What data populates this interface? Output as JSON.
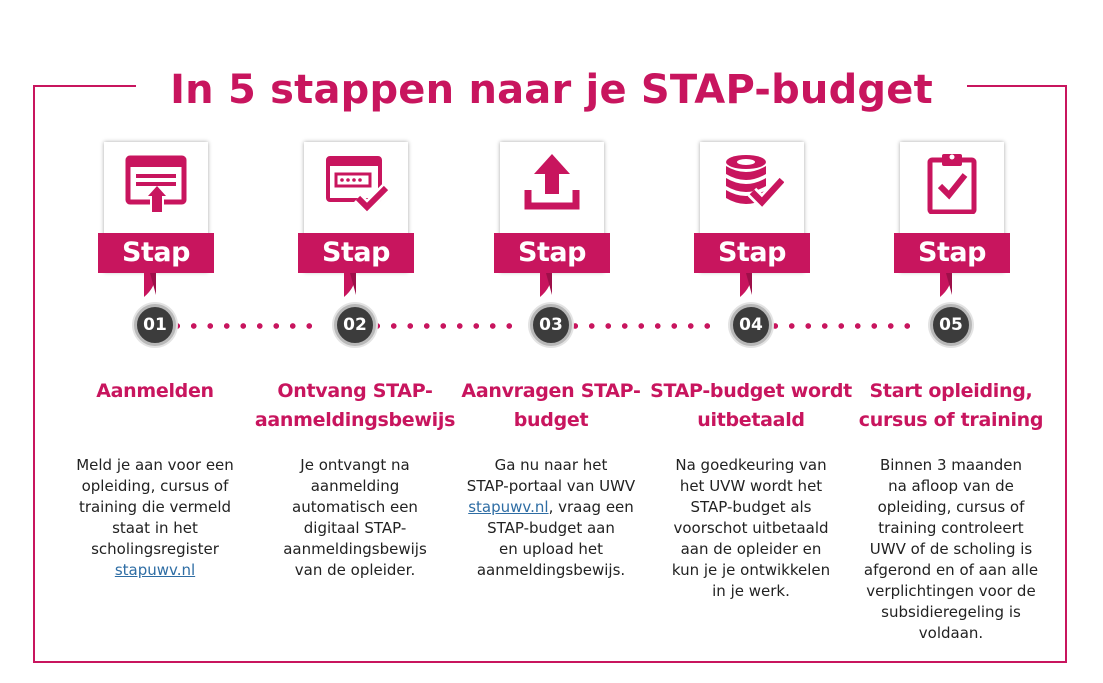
{
  "title": "In 5 stappen naar je STAP-budget",
  "colors": {
    "accent": "#c8155e",
    "number_circle": "#3c3c3c",
    "dots": "#c8155e",
    "link": "#2e6da4"
  },
  "steps": [
    {
      "number": "01",
      "banner": "Stap",
      "icon": "browser-upload-icon",
      "heading": [
        "Aanmelden"
      ],
      "body": [
        "Meld je aan voor een",
        "opleiding, cursus of",
        "training die vermeld",
        "staat in het",
        "scholingsregister"
      ],
      "link": "stapuwv.nl"
    },
    {
      "number": "02",
      "banner": "Stap",
      "icon": "password-check-icon",
      "heading": [
        "Ontvang STAP-",
        "aanmeldingsbewijs"
      ],
      "body": [
        "Je ontvangt na",
        "aanmelding",
        "automatisch een",
        "digitaal STAP-",
        "aanmeldingsbewijs",
        "van de opleider."
      ]
    },
    {
      "number": "03",
      "banner": "Stap",
      "icon": "upload-icon",
      "heading": [
        "Aanvragen",
        "STAP-budget"
      ],
      "body_before": [
        "Ga nu naar het",
        "STAP-portaal van UWV"
      ],
      "link": "stapuwv.nl",
      "link_suffix": ", vraag een",
      "body_after": [
        "STAP-budget aan",
        "en upload het",
        "aanmeldingsbewijs."
      ]
    },
    {
      "number": "04",
      "banner": "Stap",
      "icon": "coins-check-icon",
      "heading": [
        "STAP-budget",
        "wordt uitbetaald"
      ],
      "body": [
        "Na goedkeuring van",
        "het UVW wordt het",
        "STAP-budget als",
        "voorschot uitbetaald",
        "aan de opleider en",
        "kun je je ontwikkelen",
        "in je werk."
      ]
    },
    {
      "number": "05",
      "banner": "Stap",
      "icon": "clipboard-check-icon",
      "heading": [
        "Start opleiding,",
        "cursus of training"
      ],
      "body": [
        "Binnen 3 maanden",
        "na afloop van de",
        "opleiding, cursus of",
        "training controleert",
        "UWV of de scholing is",
        "afgerond en of aan alle",
        "verplichtingen voor de",
        "subsidieregeling is",
        "voldaan."
      ]
    }
  ]
}
